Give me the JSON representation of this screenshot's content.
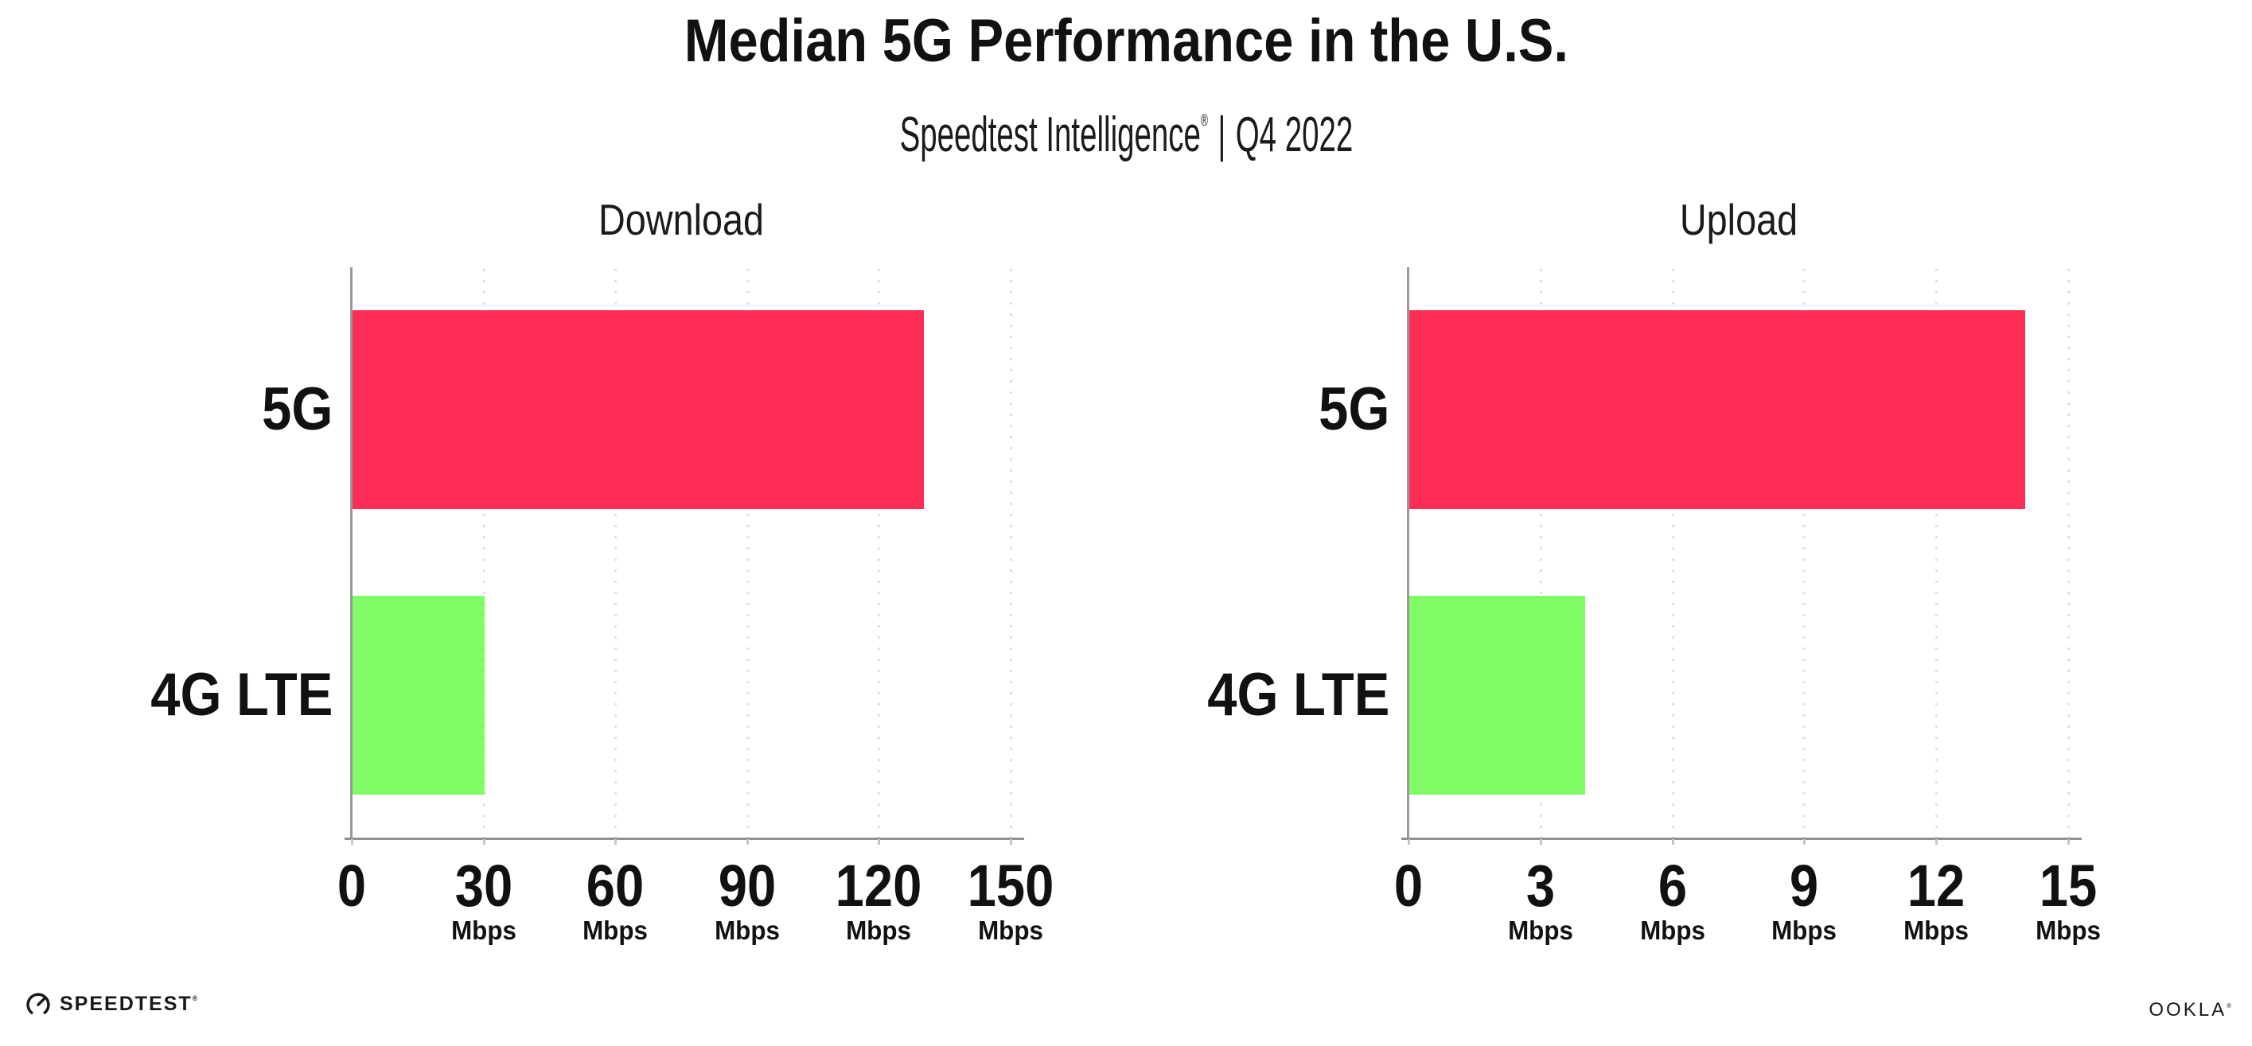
{
  "title": "Median 5G Performance in the U.S.",
  "subtitle": {
    "brand": "Speedtest Intelligence",
    "registered_mark": "®",
    "separator": "|",
    "period": "Q4 2022"
  },
  "footer": {
    "speedtest_label": "SPEEDTEST",
    "speedtest_mark": "®",
    "ookla_label": "OOKLA",
    "ookla_mark": "®"
  },
  "colors": {
    "bar_5g": "#ff2e56",
    "bar_4g_lte": "#80fc66",
    "gridline": "#e0e0ea",
    "y_axis": "#98989e",
    "baseline": "#8f8f96",
    "tick_dot": "#c6c6d4",
    "text": "#161616"
  },
  "chart_data": [
    {
      "type": "bar",
      "orientation": "horizontal",
      "title": "Download",
      "categories": [
        "5G",
        "4G LTE"
      ],
      "values": [
        130,
        30
      ],
      "unit": "Mbps",
      "xlabel": "",
      "ylabel": "",
      "xlim": [
        0,
        150
      ],
      "xticks": [
        0,
        30,
        60,
        90,
        120,
        150
      ],
      "bar_colors": [
        "#ff2e56",
        "#80fc66"
      ],
      "grid": "vertical-dotted",
      "legend": "none"
    },
    {
      "type": "bar",
      "orientation": "horizontal",
      "title": "Upload",
      "categories": [
        "5G",
        "4G LTE"
      ],
      "values": [
        14,
        4
      ],
      "unit": "Mbps",
      "xlabel": "",
      "ylabel": "",
      "xlim": [
        0,
        15
      ],
      "xticks": [
        0,
        3,
        6,
        9,
        12,
        15
      ],
      "bar_colors": [
        "#ff2e56",
        "#80fc66"
      ],
      "grid": "vertical-dotted",
      "legend": "none"
    }
  ]
}
